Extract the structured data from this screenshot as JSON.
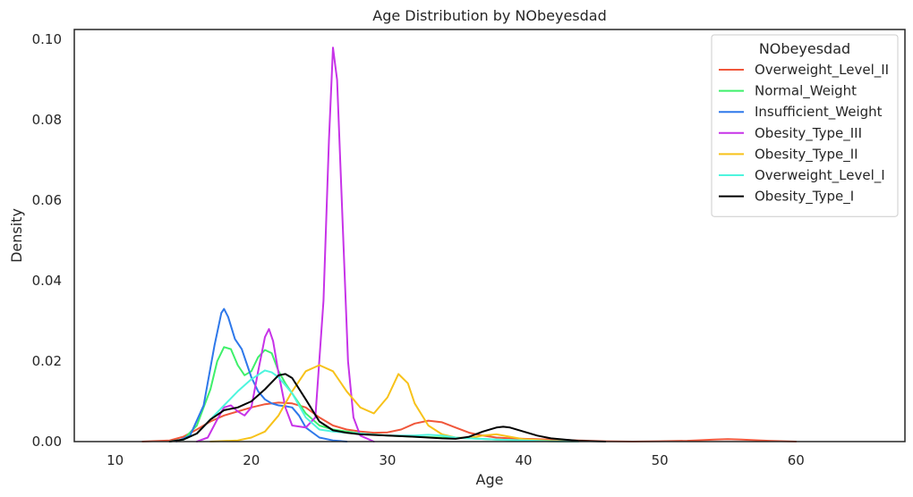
{
  "chart_data": {
    "type": "line",
    "title": "Age Distribution by NObeyesdad",
    "xlabel": "Age",
    "ylabel": "Density",
    "xlim": [
      7,
      68
    ],
    "ylim": [
      0,
      0.1025
    ],
    "x_ticks": [
      10,
      20,
      30,
      40,
      50,
      60
    ],
    "y_ticks": [
      0.0,
      0.02,
      0.04,
      0.06,
      0.08,
      0.1
    ],
    "y_tick_labels": [
      "0.00",
      "0.02",
      "0.04",
      "0.06",
      "0.08",
      "0.10"
    ],
    "grid": false,
    "legend": {
      "title": "NObeyesdad",
      "position": "top-right"
    },
    "series": [
      {
        "name": "Overweight_Level_II",
        "color": "#f0563a",
        "points": [
          [
            12,
            0
          ],
          [
            14,
            0.0003
          ],
          [
            15,
            0.0012
          ],
          [
            16,
            0.003
          ],
          [
            17,
            0.005
          ],
          [
            18,
            0.0065
          ],
          [
            19,
            0.0075
          ],
          [
            20,
            0.0085
          ],
          [
            21,
            0.0093
          ],
          [
            22,
            0.0097
          ],
          [
            23,
            0.0095
          ],
          [
            24,
            0.0085
          ],
          [
            25,
            0.006
          ],
          [
            26,
            0.004
          ],
          [
            27,
            0.003
          ],
          [
            28,
            0.0025
          ],
          [
            29,
            0.0022
          ],
          [
            30,
            0.0023
          ],
          [
            31,
            0.003
          ],
          [
            32,
            0.0045
          ],
          [
            33,
            0.0052
          ],
          [
            34,
            0.0048
          ],
          [
            35,
            0.0035
          ],
          [
            36,
            0.0022
          ],
          [
            37,
            0.0015
          ],
          [
            38,
            0.001
          ],
          [
            39,
            0.0008
          ],
          [
            40,
            0.0007
          ],
          [
            42,
            0.0005
          ],
          [
            44,
            0.0003
          ],
          [
            46,
            0.0001
          ],
          [
            48,
            0.0
          ],
          [
            50,
            0.0001
          ],
          [
            52,
            0.0002
          ],
          [
            54,
            0.0005
          ],
          [
            55,
            0.0006
          ],
          [
            56,
            0.0005
          ],
          [
            58,
            0.0002
          ],
          [
            60,
            0.0
          ]
        ]
      },
      {
        "name": "Normal_Weight",
        "color": "#3ef06a",
        "points": [
          [
            14,
            0
          ],
          [
            15,
            0.0005
          ],
          [
            16,
            0.004
          ],
          [
            17,
            0.013
          ],
          [
            17.5,
            0.02
          ],
          [
            18,
            0.0235
          ],
          [
            18.5,
            0.023
          ],
          [
            19,
            0.019
          ],
          [
            19.5,
            0.0165
          ],
          [
            20,
            0.0175
          ],
          [
            20.5,
            0.021
          ],
          [
            21,
            0.0228
          ],
          [
            21.5,
            0.022
          ],
          [
            22,
            0.0175
          ],
          [
            22.5,
            0.0145
          ],
          [
            23,
            0.012
          ],
          [
            24,
            0.007
          ],
          [
            25,
            0.004
          ],
          [
            26,
            0.003
          ],
          [
            27,
            0.0025
          ],
          [
            28,
            0.002
          ],
          [
            30,
            0.0015
          ],
          [
            32,
            0.0012
          ],
          [
            34,
            0.001
          ],
          [
            36,
            0.0008
          ],
          [
            38,
            0.0005
          ],
          [
            40,
            0.0003
          ],
          [
            42,
            0.0001
          ],
          [
            44,
            0.0
          ]
        ]
      },
      {
        "name": "Insufficient_Weight",
        "color": "#2e78ea",
        "points": [
          [
            14.5,
            0
          ],
          [
            15.5,
            0.0015
          ],
          [
            16.5,
            0.009
          ],
          [
            17.3,
            0.024
          ],
          [
            17.8,
            0.032
          ],
          [
            18,
            0.033
          ],
          [
            18.3,
            0.031
          ],
          [
            18.8,
            0.0255
          ],
          [
            19.3,
            0.023
          ],
          [
            20,
            0.016
          ],
          [
            20.5,
            0.0125
          ],
          [
            21,
            0.0105
          ],
          [
            21.5,
            0.0095
          ],
          [
            22,
            0.009
          ],
          [
            22.5,
            0.0088
          ],
          [
            23,
            0.0085
          ],
          [
            23.5,
            0.0065
          ],
          [
            24,
            0.0035
          ],
          [
            25,
            0.001
          ],
          [
            26,
            0.0003
          ],
          [
            27,
            0.0
          ]
        ]
      },
      {
        "name": "Obesity_Type_III",
        "color": "#c733e8",
        "points": [
          [
            16,
            0
          ],
          [
            16.8,
            0.001
          ],
          [
            17.5,
            0.0055
          ],
          [
            18,
            0.0085
          ],
          [
            18.5,
            0.009
          ],
          [
            19,
            0.0075
          ],
          [
            19.5,
            0.0065
          ],
          [
            20,
            0.0085
          ],
          [
            20.5,
            0.0175
          ],
          [
            21,
            0.026
          ],
          [
            21.3,
            0.028
          ],
          [
            21.6,
            0.025
          ],
          [
            22,
            0.017
          ],
          [
            22.5,
            0.0085
          ],
          [
            23,
            0.004
          ],
          [
            24,
            0.0035
          ],
          [
            24.7,
            0.006
          ],
          [
            25.3,
            0.035
          ],
          [
            25.7,
            0.075
          ],
          [
            26,
            0.098
          ],
          [
            26.3,
            0.09
          ],
          [
            26.7,
            0.055
          ],
          [
            27.1,
            0.02
          ],
          [
            27.5,
            0.006
          ],
          [
            28,
            0.0015
          ],
          [
            29,
            0.0
          ]
        ]
      },
      {
        "name": "Obesity_Type_II",
        "color": "#f7c21a",
        "points": [
          [
            17,
            0
          ],
          [
            19,
            0.0003
          ],
          [
            20,
            0.001
          ],
          [
            21,
            0.0025
          ],
          [
            22,
            0.0065
          ],
          [
            23,
            0.0125
          ],
          [
            24,
            0.0175
          ],
          [
            25,
            0.019
          ],
          [
            26,
            0.0175
          ],
          [
            27,
            0.0125
          ],
          [
            28,
            0.0085
          ],
          [
            29,
            0.007
          ],
          [
            30,
            0.011
          ],
          [
            30.8,
            0.0168
          ],
          [
            31.5,
            0.0145
          ],
          [
            32,
            0.0095
          ],
          [
            33,
            0.004
          ],
          [
            34,
            0.0018
          ],
          [
            35,
            0.001
          ],
          [
            36,
            0.0009
          ],
          [
            37,
            0.0015
          ],
          [
            38,
            0.0018
          ],
          [
            39,
            0.0012
          ],
          [
            40,
            0.0006
          ],
          [
            42,
            0.0002
          ],
          [
            44,
            0.0
          ]
        ]
      },
      {
        "name": "Overweight_Level_I",
        "color": "#4ef5de",
        "points": [
          [
            14,
            0
          ],
          [
            15,
            0.0005
          ],
          [
            16,
            0.002
          ],
          [
            17,
            0.0055
          ],
          [
            18,
            0.009
          ],
          [
            19,
            0.0125
          ],
          [
            20,
            0.0155
          ],
          [
            21,
            0.0177
          ],
          [
            21.5,
            0.0172
          ],
          [
            22,
            0.016
          ],
          [
            23,
            0.012
          ],
          [
            24,
            0.006
          ],
          [
            25,
            0.003
          ],
          [
            26,
            0.0025
          ],
          [
            27,
            0.0022
          ],
          [
            28,
            0.002
          ],
          [
            30,
            0.0015
          ],
          [
            32,
            0.0015
          ],
          [
            33,
            0.0017
          ],
          [
            34,
            0.0015
          ],
          [
            35,
            0.001
          ],
          [
            36,
            0.0008
          ],
          [
            38,
            0.0005
          ],
          [
            40,
            0.0003
          ],
          [
            42,
            0.0001
          ],
          [
            44,
            0.0
          ]
        ]
      },
      {
        "name": "Obesity_Type_I",
        "color": "#000000",
        "points": [
          [
            14,
            0
          ],
          [
            15,
            0.0005
          ],
          [
            16,
            0.002
          ],
          [
            17,
            0.0055
          ],
          [
            18,
            0.0078
          ],
          [
            19,
            0.0085
          ],
          [
            20,
            0.01
          ],
          [
            21,
            0.013
          ],
          [
            22,
            0.0165
          ],
          [
            22.5,
            0.0168
          ],
          [
            23,
            0.0158
          ],
          [
            24,
            0.0105
          ],
          [
            25,
            0.005
          ],
          [
            26,
            0.0028
          ],
          [
            27,
            0.0022
          ],
          [
            28,
            0.0018
          ],
          [
            30,
            0.0015
          ],
          [
            32,
            0.0012
          ],
          [
            34,
            0.0008
          ],
          [
            35,
            0.0007
          ],
          [
            36,
            0.0012
          ],
          [
            37,
            0.0025
          ],
          [
            38,
            0.0035
          ],
          [
            38.5,
            0.0037
          ],
          [
            39,
            0.0035
          ],
          [
            40,
            0.0025
          ],
          [
            41,
            0.0015
          ],
          [
            42,
            0.0008
          ],
          [
            44,
            0.0002
          ],
          [
            46,
            0.0
          ]
        ]
      }
    ]
  }
}
